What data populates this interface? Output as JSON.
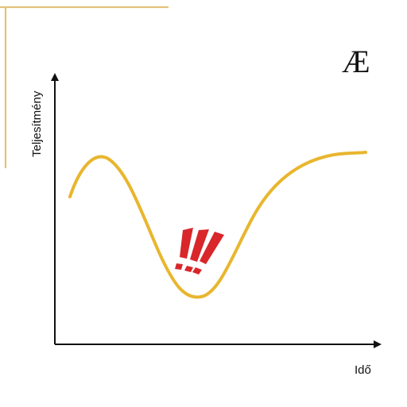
{
  "diagram": {
    "y_axis_label": "Teljesítmény",
    "x_axis_label": "Idő",
    "logo_text": "Æ",
    "curve_color": "#e8b62e",
    "accent_frame_color": "#e2c27a",
    "alert_color": "#d8262b",
    "alert_symbol": "!!!",
    "axis_color": "#111111"
  }
}
